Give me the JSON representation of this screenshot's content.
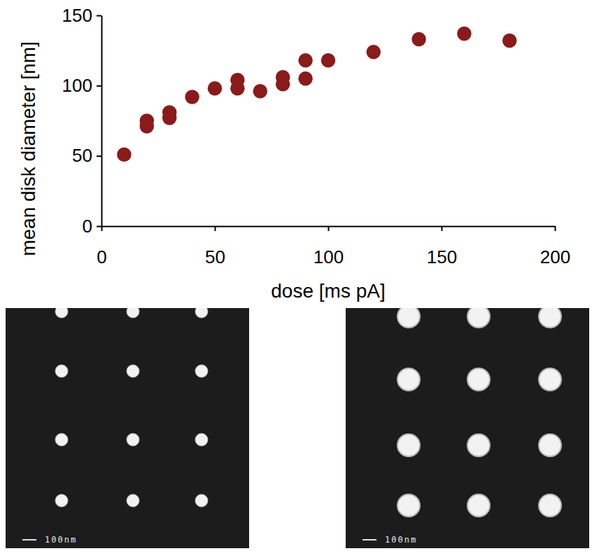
{
  "chart_data": {
    "type": "scatter",
    "x_label": "dose [ms pA]",
    "y_label": "mean disk diameter [nm]",
    "x": [
      10,
      20,
      20,
      30,
      30,
      40,
      50,
      60,
      60,
      70,
      80,
      80,
      90,
      90,
      100,
      120,
      140,
      160,
      180
    ],
    "values": [
      51,
      71,
      75,
      77,
      81,
      92,
      98,
      98,
      104,
      96,
      101,
      106,
      105,
      118,
      118,
      124,
      133,
      137,
      132
    ],
    "color": "#8b1a1a",
    "marker": "circle",
    "xlim": [
      0,
      200
    ],
    "xticks": [
      0,
      50,
      100,
      150,
      200
    ],
    "ylim": [
      0,
      150
    ],
    "yticks": [
      0,
      50,
      100,
      150
    ],
    "grid": false
  },
  "micrographs": [
    {
      "scale_label": "100nm"
    },
    {
      "scale_label": "100nm"
    }
  ]
}
